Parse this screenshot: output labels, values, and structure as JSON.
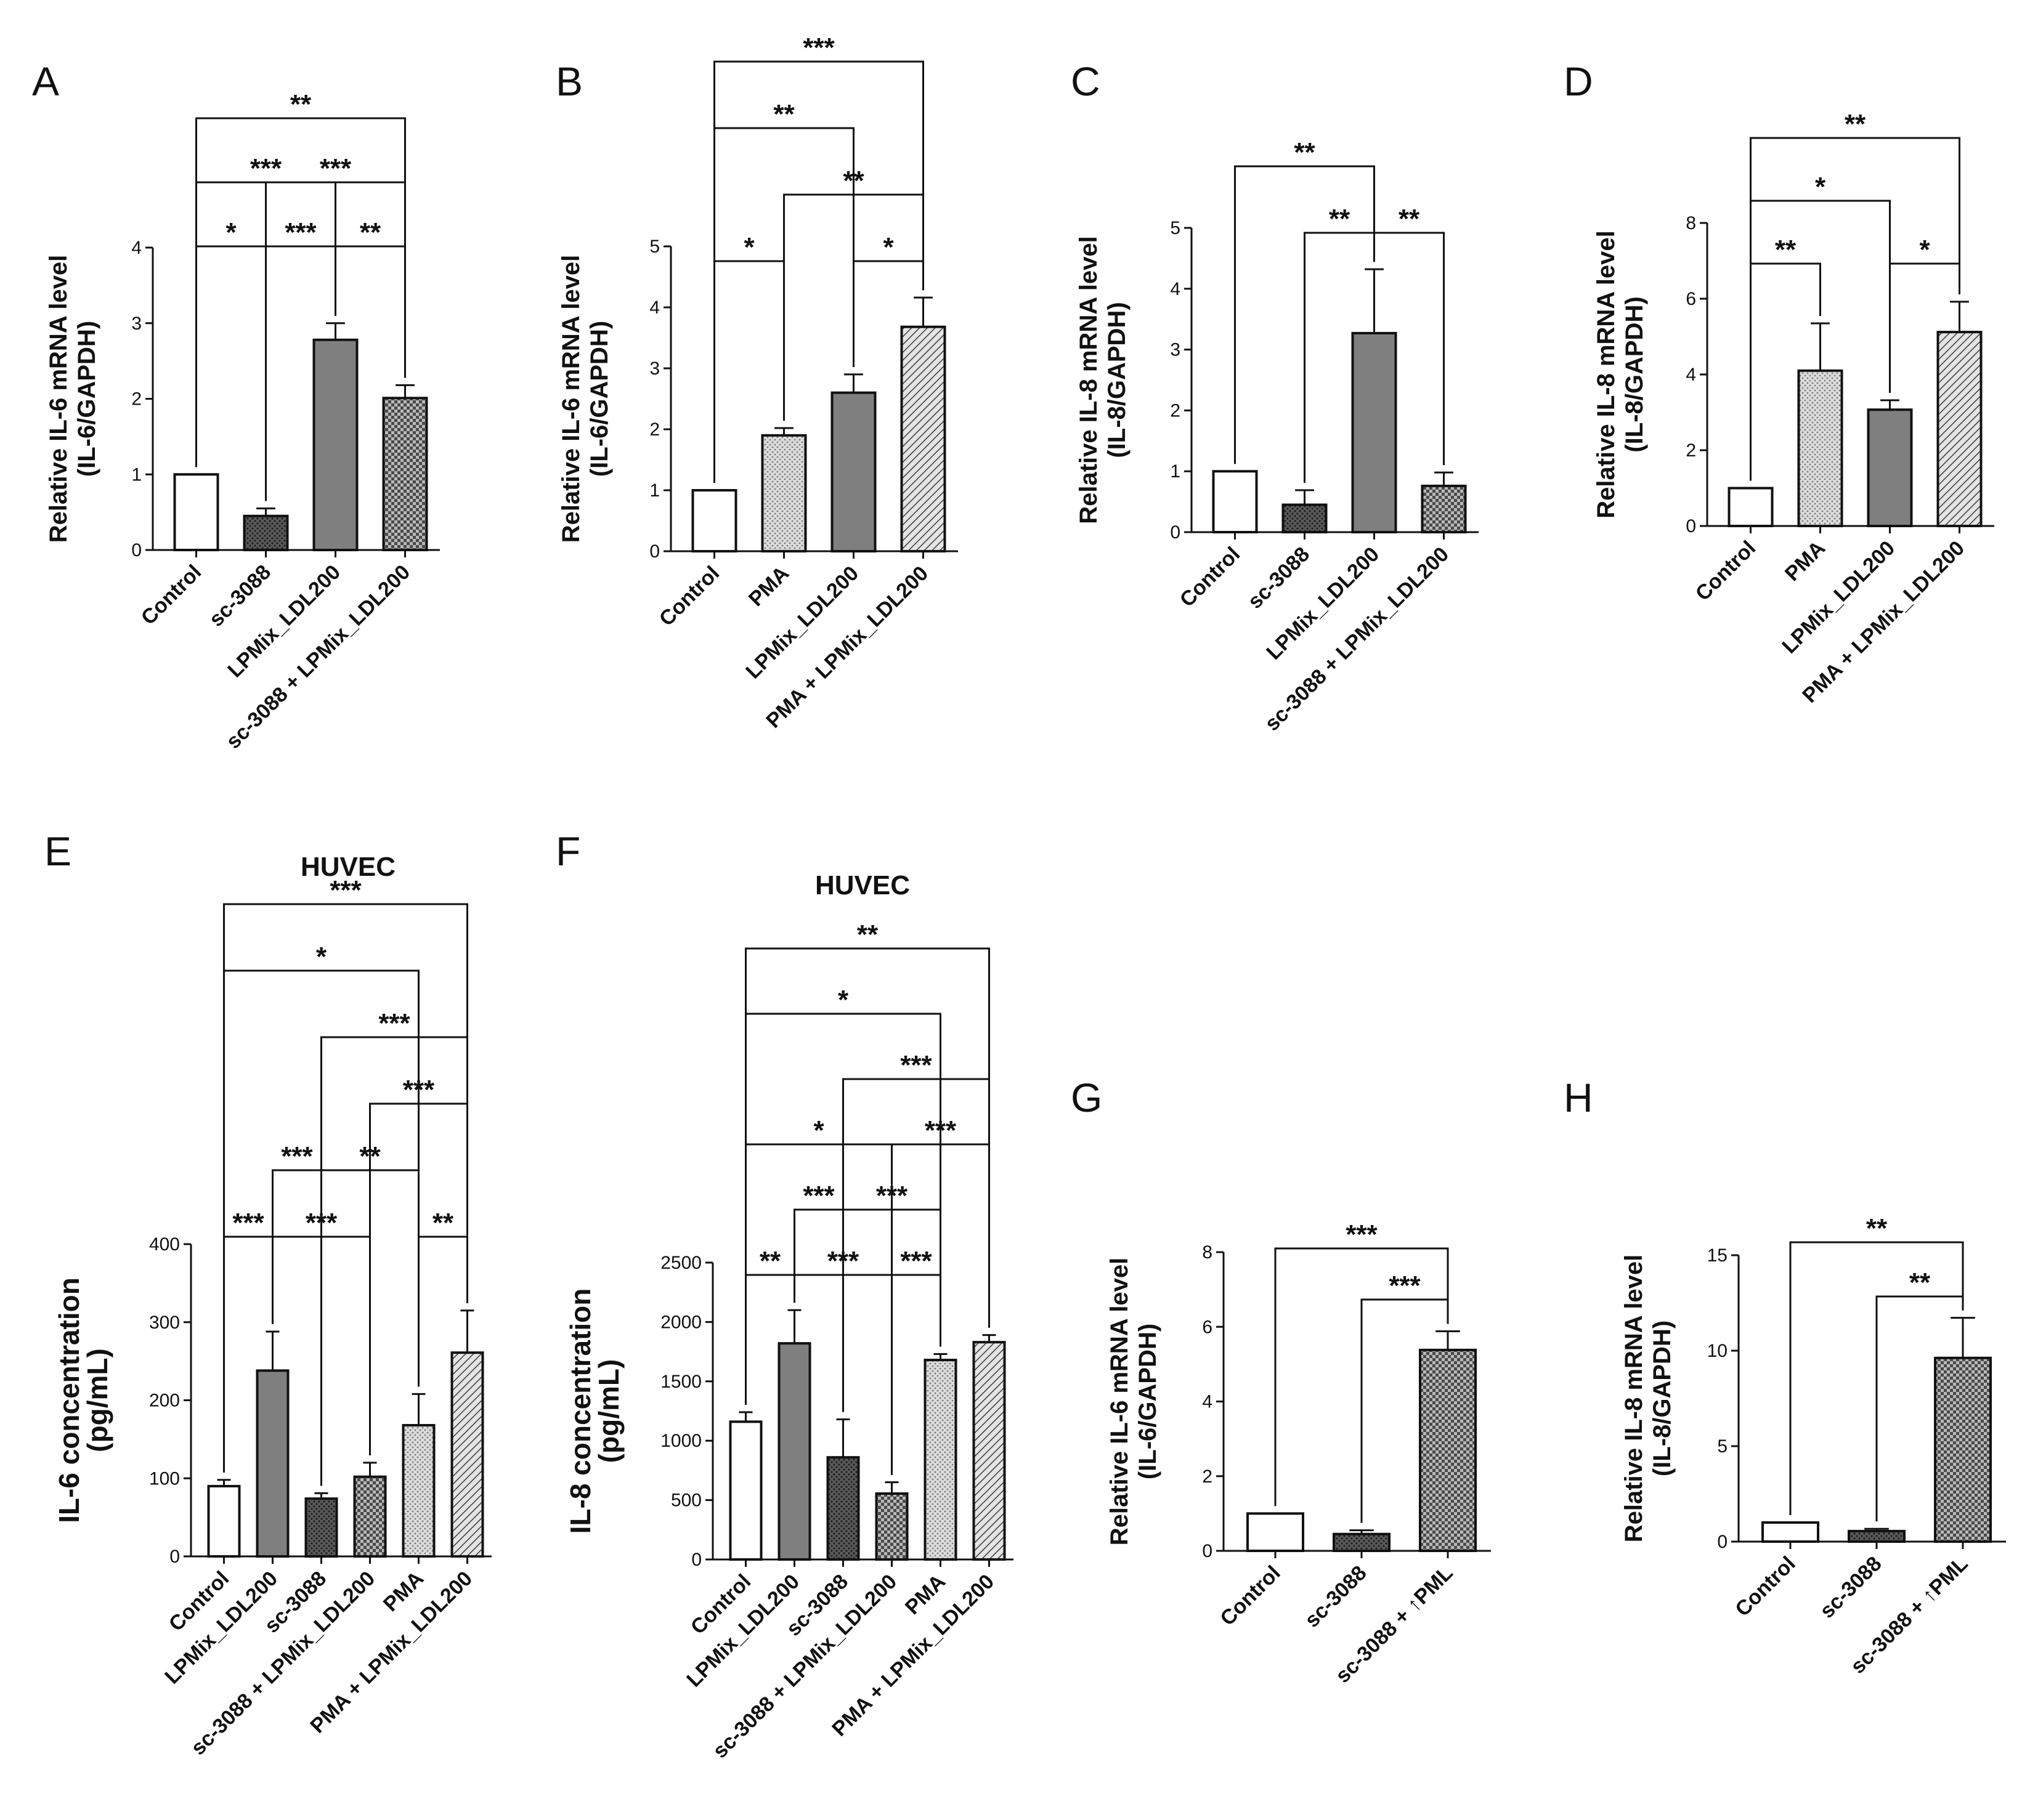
{
  "chart_data": [
    {
      "panel": "A",
      "type": "bar",
      "title": "",
      "ylabel": [
        "Relative IL-6 mRNA level",
        "(IL-6/GAPDH)"
      ],
      "categories": [
        "Control",
        "sc-3088",
        "LPMix_LDL200",
        "sc-3088 + LPMix_LDL200"
      ],
      "values": [
        1.0,
        0.45,
        2.78,
        2.01
      ],
      "errors": [
        0,
        0.1,
        0.22,
        0.17
      ],
      "fills": [
        "white",
        "darkdots",
        "gray",
        "check"
      ],
      "ylim": [
        0,
        4
      ],
      "yticks": [
        0,
        1,
        2,
        3,
        4
      ],
      "sig": [
        {
          "a": 0,
          "b": 1,
          "label": "*"
        },
        {
          "a": 1,
          "b": 2,
          "label": "***"
        },
        {
          "a": 2,
          "b": 3,
          "label": "**"
        },
        {
          "a": 0,
          "b": 2,
          "label": "***"
        },
        {
          "a": 1,
          "b": 3,
          "label": "***"
        },
        {
          "a": 0,
          "b": 3,
          "label": "**"
        }
      ]
    },
    {
      "panel": "B",
      "type": "bar",
      "title": "",
      "ylabel": [
        "Relative IL-6 mRNA level",
        "(IL-6/GAPDH)"
      ],
      "categories": [
        "Control",
        "PMA",
        "LPMix_LDL200",
        "PMA + LPMix_LDL200"
      ],
      "values": [
        1.0,
        1.9,
        2.6,
        3.68
      ],
      "errors": [
        0,
        0.12,
        0.3,
        0.48
      ],
      "fills": [
        "white",
        "lightdots",
        "gray",
        "hatch"
      ],
      "ylim": [
        0,
        5
      ],
      "yticks": [
        0,
        1,
        2,
        3,
        4,
        5
      ],
      "sig": [
        {
          "a": 0,
          "b": 1,
          "label": "*"
        },
        {
          "a": 2,
          "b": 3,
          "label": "*"
        },
        {
          "a": 1,
          "b": 3,
          "label": "**"
        },
        {
          "a": 0,
          "b": 2,
          "label": "**"
        },
        {
          "a": 0,
          "b": 3,
          "label": "***"
        }
      ]
    },
    {
      "panel": "C",
      "type": "bar",
      "title": "",
      "ylabel": [
        "Relative IL-8 mRNA level",
        "(IL-8/GAPDH)"
      ],
      "categories": [
        "Control",
        "sc-3088",
        "LPMix_LDL200",
        "sc-3088 + LPMix_LDL200"
      ],
      "values": [
        1.0,
        0.45,
        3.27,
        0.76
      ],
      "errors": [
        0,
        0.24,
        1.05,
        0.22
      ],
      "fills": [
        "white",
        "darkdots",
        "gray",
        "check"
      ],
      "ylim": [
        0,
        5
      ],
      "yticks": [
        0,
        1,
        2,
        3,
        4,
        5
      ],
      "sig": [
        {
          "a": 1,
          "b": 2,
          "label": "**"
        },
        {
          "a": 2,
          "b": 3,
          "label": "**"
        },
        {
          "a": 0,
          "b": 2,
          "label": "**"
        }
      ]
    },
    {
      "panel": "D",
      "type": "bar",
      "title": "",
      "ylabel": [
        "Relative IL-8 mRNA level",
        "(IL-8/GAPDH)"
      ],
      "categories": [
        "Control",
        "PMA",
        "LPMix_LDL200",
        "PMA + LPMix_LDL200"
      ],
      "values": [
        1.0,
        4.1,
        3.07,
        5.12
      ],
      "errors": [
        0,
        1.25,
        0.25,
        0.8
      ],
      "fills": [
        "white",
        "lightdots",
        "gray",
        "hatch"
      ],
      "ylim": [
        0,
        8
      ],
      "yticks": [
        0,
        2,
        4,
        6,
        8
      ],
      "sig": [
        {
          "a": 0,
          "b": 1,
          "label": "**"
        },
        {
          "a": 2,
          "b": 3,
          "label": "*"
        },
        {
          "a": 0,
          "b": 2,
          "label": "*"
        },
        {
          "a": 0,
          "b": 3,
          "label": "**"
        }
      ]
    },
    {
      "panel": "E",
      "type": "bar",
      "title": "HUVEC",
      "ylabel": [
        "IL-6 concentration",
        "(pg/mL)"
      ],
      "categories": [
        "Control",
        "LPMix_LDL200",
        "sc-3088",
        "sc-3088 + LPMix_LDL200",
        "PMA",
        "PMA + LPMix_LDL200"
      ],
      "values": [
        90,
        238,
        74,
        102,
        168,
        261
      ],
      "errors": [
        8,
        50,
        7,
        18,
        40,
        54
      ],
      "fills": [
        "white",
        "gray",
        "darkdots",
        "check",
        "lightdots",
        "hatch"
      ],
      "ylim": [
        0,
        400
      ],
      "yticks": [
        0,
        100,
        200,
        300,
        400
      ],
      "sig": [
        {
          "a": 0,
          "b": 1,
          "label": "***"
        },
        {
          "a": 1,
          "b": 3,
          "label": "***"
        },
        {
          "a": 4,
          "b": 5,
          "label": "**"
        },
        {
          "a": 1,
          "b": 2,
          "label": "***"
        },
        {
          "a": 2,
          "b": 4,
          "label": "**"
        },
        {
          "a": 3,
          "b": 5,
          "label": "***"
        },
        {
          "a": 2,
          "b": 5,
          "label": "***"
        },
        {
          "a": 0,
          "b": 4,
          "label": "*"
        },
        {
          "a": 0,
          "b": 5,
          "label": "***"
        }
      ]
    },
    {
      "panel": "F",
      "type": "bar",
      "title": "HUVEC",
      "ylabel": [
        "IL-8 concentration",
        "(pg/mL)"
      ],
      "categories": [
        "Control",
        "LPMix_LDL200",
        "sc-3088",
        "sc-3088 + LPMix_LDL200",
        "PMA",
        "PMA + LPMix_LDL200"
      ],
      "values": [
        1160,
        1820,
        860,
        555,
        1680,
        1830
      ],
      "errors": [
        80,
        280,
        320,
        95,
        50,
        60
      ],
      "fills": [
        "white",
        "gray",
        "darkdots",
        "check",
        "lightdots",
        "hatch"
      ],
      "ylim": [
        0,
        2500
      ],
      "yticks": [
        0,
        500,
        1000,
        1500,
        2000,
        2500
      ],
      "sig": [
        {
          "a": 0,
          "b": 1,
          "label": "**"
        },
        {
          "a": 1,
          "b": 3,
          "label": "***"
        },
        {
          "a": 3,
          "b": 4,
          "label": "***"
        },
        {
          "a": 1,
          "b": 2,
          "label": "***"
        },
        {
          "a": 2,
          "b": 4,
          "label": "***"
        },
        {
          "a": 0,
          "b": 3,
          "label": "*"
        },
        {
          "a": 3,
          "b": 5,
          "label": "***"
        },
        {
          "a": 2,
          "b": 5,
          "label": "***"
        },
        {
          "a": 0,
          "b": 4,
          "label": "*"
        },
        {
          "a": 0,
          "b": 5,
          "label": "**"
        }
      ]
    },
    {
      "panel": "G",
      "type": "bar",
      "title": "",
      "ylabel": [
        "Relative IL-6 mRNA level",
        "(IL-6/GAPDH)"
      ],
      "categories": [
        "Control",
        "sc-3088",
        "sc-3088 + ↑PML"
      ],
      "values": [
        1.0,
        0.45,
        5.38
      ],
      "errors": [
        0,
        0.1,
        0.5
      ],
      "fills": [
        "white",
        "darkdots",
        "check"
      ],
      "ylim": [
        0,
        8
      ],
      "yticks": [
        0,
        2,
        4,
        6,
        8
      ],
      "sig": [
        {
          "a": 1,
          "b": 2,
          "label": "***"
        },
        {
          "a": 0,
          "b": 2,
          "label": "***"
        }
      ]
    },
    {
      "panel": "H",
      "type": "bar",
      "title": "",
      "ylabel": [
        "Relative IL-8 mRNA level",
        "(IL-8/GAPDH)"
      ],
      "categories": [
        "Control",
        "sc-3088",
        "sc-3088 + ↑PML"
      ],
      "values": [
        1.0,
        0.55,
        9.62
      ],
      "errors": [
        0,
        0.12,
        2.1
      ],
      "fills": [
        "white",
        "darkdots",
        "check"
      ],
      "ylim": [
        0,
        15
      ],
      "yticks": [
        0,
        5,
        10,
        15
      ],
      "sig": [
        {
          "a": 1,
          "b": 2,
          "label": "**"
        },
        {
          "a": 0,
          "b": 2,
          "label": "**"
        }
      ]
    }
  ]
}
